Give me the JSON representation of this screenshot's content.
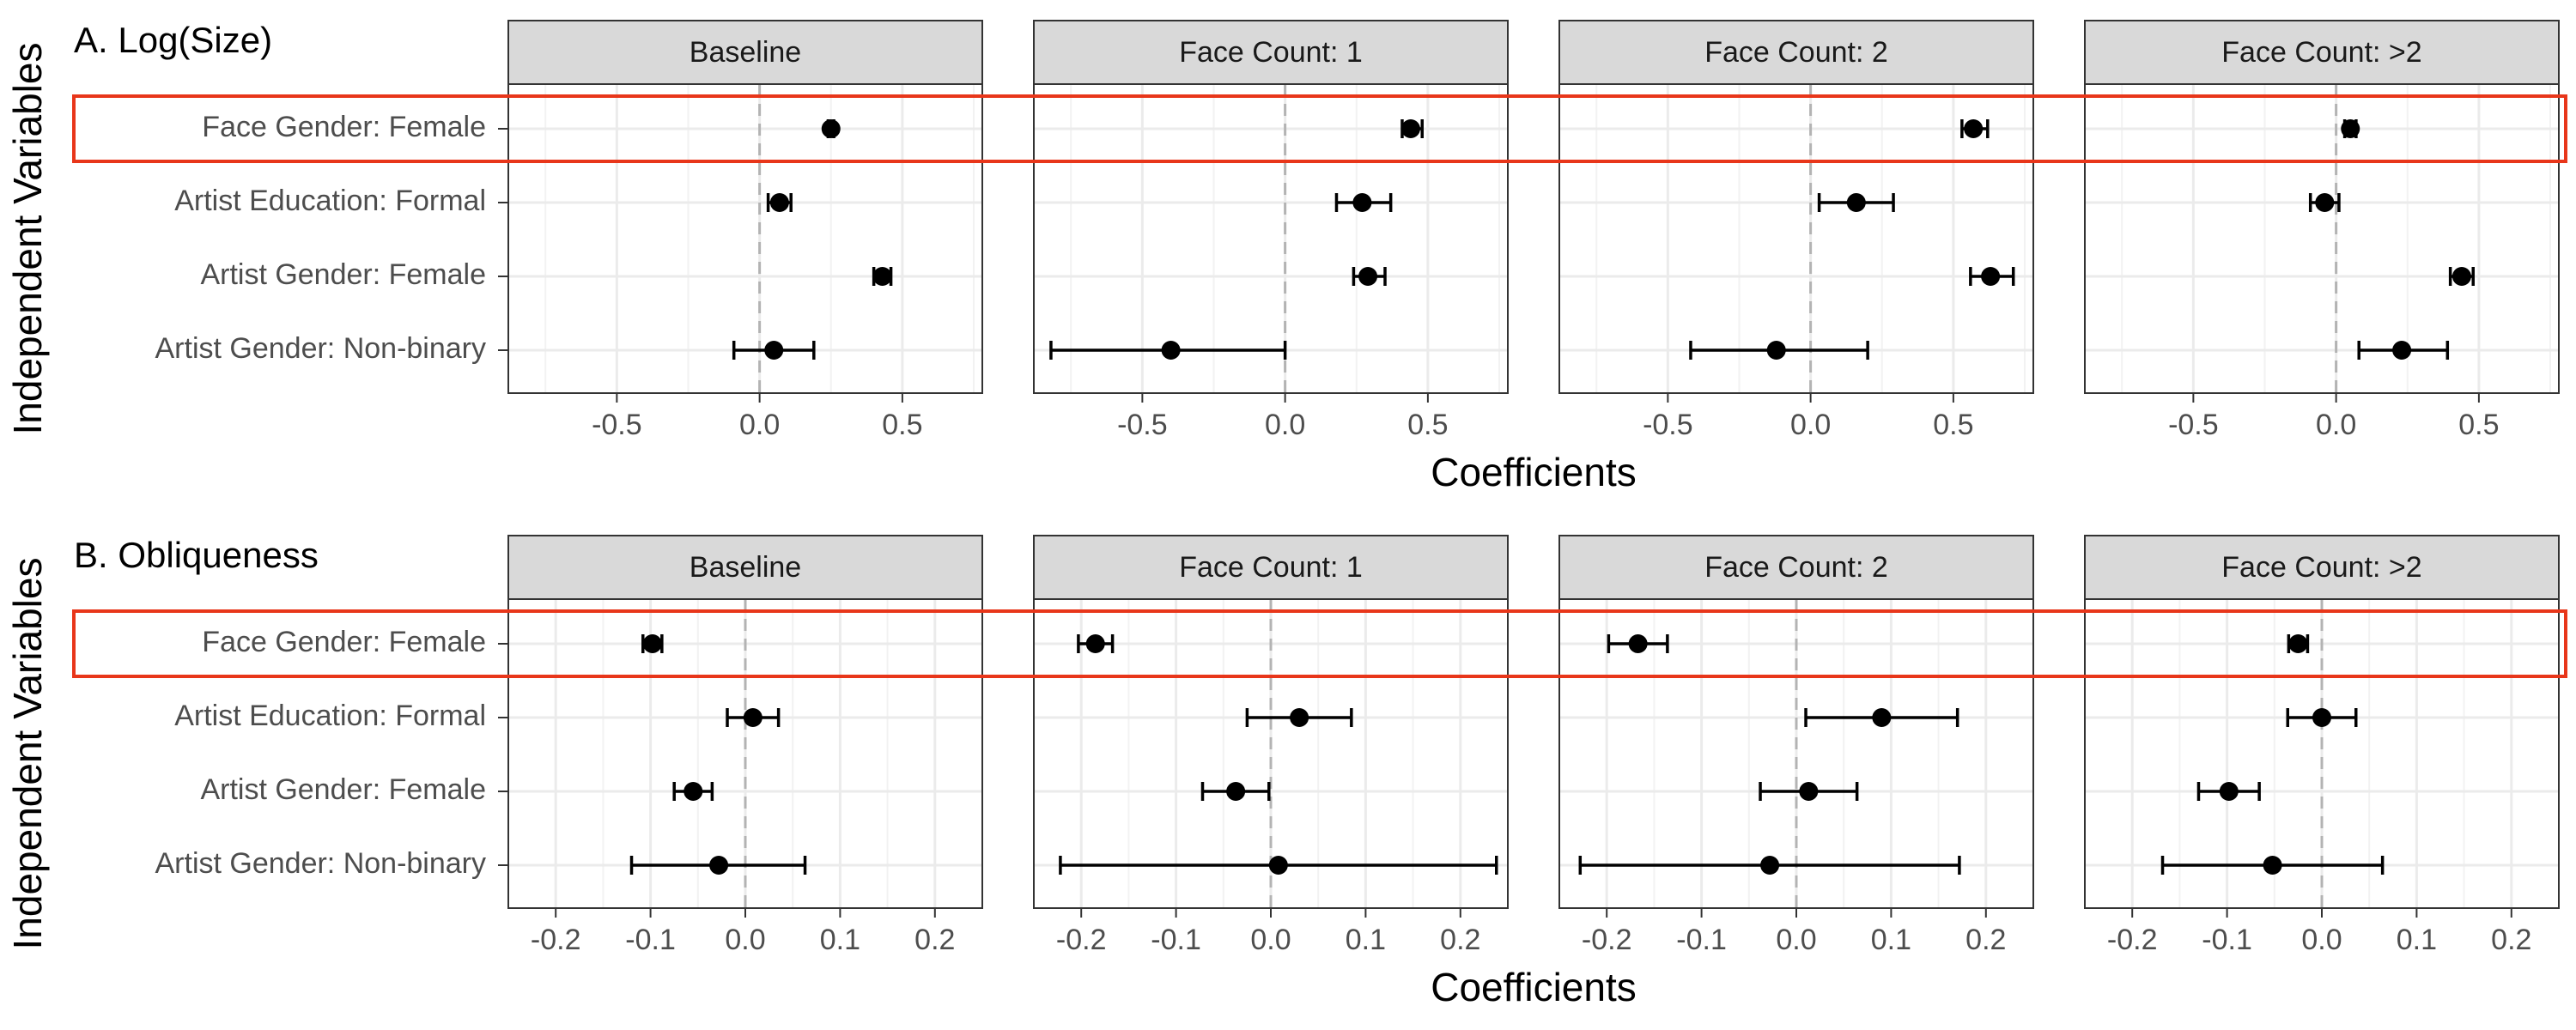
{
  "figure": {
    "ylabel": "Independent Variables",
    "variables": [
      "Face Gender: Female",
      "Artist Education: Formal",
      "Artist Gender: Female",
      "Artist Gender: Non-binary"
    ],
    "highlight_variable": "Face Gender: Female",
    "highlight_color": "#e8361a",
    "zero_line_color": "#b3b3b3",
    "strip_fill": "#d9d9d9",
    "point_color": "#000000"
  },
  "chart_data": [
    {
      "type": "scatter",
      "title": "A. Log(Size)",
      "xlabel": "Coefficients",
      "ylabel": "Independent Variables",
      "xlim": [
        -0.88,
        0.78
      ],
      "xticks": [
        -0.5,
        0.0,
        0.5
      ],
      "xtick_labels": [
        "-0.5",
        "0.0",
        "0.5"
      ],
      "grid": true,
      "categories": [
        "Face Gender: Female",
        "Artist Education: Formal",
        "Artist Gender: Female",
        "Artist Gender: Non-binary"
      ],
      "panels": [
        {
          "name": "Baseline",
          "estimates": [
            0.25,
            0.07,
            0.43,
            0.05
          ],
          "lower": [
            0.24,
            0.03,
            0.4,
            -0.09
          ],
          "upper": [
            0.26,
            0.11,
            0.46,
            0.19
          ]
        },
        {
          "name": "Face Count: 1",
          "estimates": [
            0.44,
            0.27,
            0.29,
            -0.4
          ],
          "lower": [
            0.41,
            0.18,
            0.24,
            -0.82
          ],
          "upper": [
            0.48,
            0.37,
            0.35,
            0.0
          ]
        },
        {
          "name": "Face Count: 2",
          "estimates": [
            0.57,
            0.16,
            0.63,
            -0.12
          ],
          "lower": [
            0.53,
            0.03,
            0.56,
            -0.42
          ],
          "upper": [
            0.62,
            0.29,
            0.71,
            0.2
          ]
        },
        {
          "name": "Face Count: >2",
          "estimates": [
            0.05,
            -0.04,
            0.44,
            0.23
          ],
          "lower": [
            0.03,
            -0.09,
            0.4,
            0.08
          ],
          "upper": [
            0.07,
            0.01,
            0.48,
            0.39
          ]
        }
      ]
    },
    {
      "type": "scatter",
      "title": "B. Obliqueness",
      "xlabel": "Coefficients",
      "ylabel": "Independent Variables",
      "xlim": [
        -0.25,
        0.25
      ],
      "xticks": [
        -0.2,
        -0.1,
        0.0,
        0.1,
        0.2
      ],
      "xtick_labels": [
        "-0.2",
        "-0.1",
        "0.0",
        "0.1",
        "0.2"
      ],
      "grid": true,
      "categories": [
        "Face Gender: Female",
        "Artist Education: Formal",
        "Artist Gender: Female",
        "Artist Gender: Non-binary"
      ],
      "panels": [
        {
          "name": "Baseline",
          "estimates": [
            -0.098,
            0.008,
            -0.055,
            -0.028
          ],
          "lower": [
            -0.108,
            -0.019,
            -0.075,
            -0.12
          ],
          "upper": [
            -0.088,
            0.035,
            -0.035,
            0.063
          ]
        },
        {
          "name": "Face Count: 1",
          "estimates": [
            -0.185,
            0.03,
            -0.037,
            0.008
          ],
          "lower": [
            -0.203,
            -0.025,
            -0.072,
            -0.222
          ],
          "upper": [
            -0.167,
            0.085,
            -0.002,
            0.238
          ]
        },
        {
          "name": "Face Count: 2",
          "estimates": [
            -0.167,
            0.09,
            0.013,
            -0.028
          ],
          "lower": [
            -0.198,
            0.01,
            -0.038,
            -0.228
          ],
          "upper": [
            -0.136,
            0.17,
            0.064,
            0.172
          ]
        },
        {
          "name": "Face Count: >2",
          "estimates": [
            -0.025,
            0.0,
            -0.098,
            -0.052
          ],
          "lower": [
            -0.035,
            -0.036,
            -0.13,
            -0.168
          ],
          "upper": [
            -0.015,
            0.036,
            -0.066,
            0.064
          ]
        }
      ]
    }
  ]
}
